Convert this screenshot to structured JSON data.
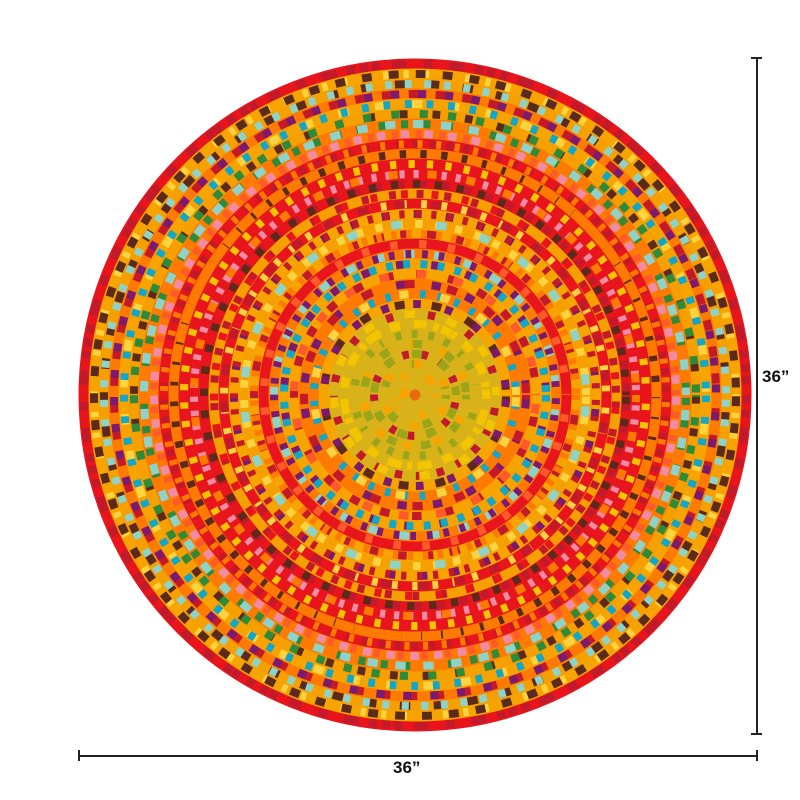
{
  "product": {
    "height_label": "36”",
    "width_label": "36”"
  },
  "colors": {
    "palette": [
      "#f7a400",
      "#ff7a00",
      "#e8161c",
      "#f5c400",
      "#1d2a6b",
      "#12a6c8",
      "#f28ba6",
      "#7b1a6e",
      "#2f8a3a",
      "#ffd23f",
      "#c21a2a",
      "#8fd3c8",
      "#5b2a1a",
      "#ff5a2a"
    ],
    "center": "#d9b21a"
  }
}
